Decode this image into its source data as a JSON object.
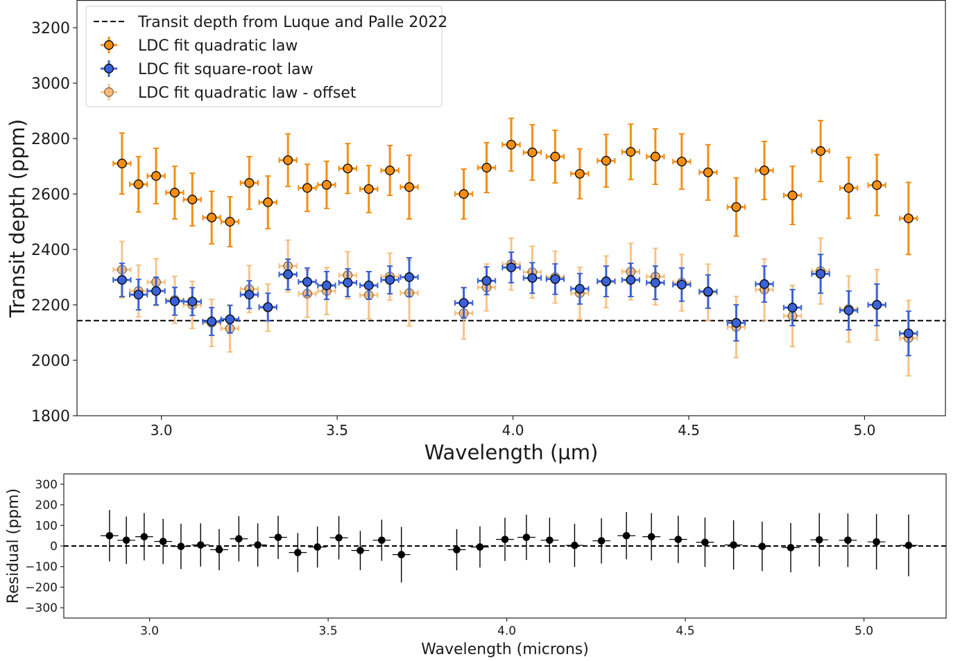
{
  "chart_data": [
    {
      "type": "scatter",
      "xlabel": "Wavelength (µm)",
      "ylabel": "Transit depth (ppm)",
      "xlim": [
        2.76,
        5.23
      ],
      "ylim": [
        1800,
        3300
      ],
      "xticks": [
        3.0,
        3.5,
        4.0,
        4.5,
        5.0
      ],
      "xtick_labels": [
        "3.0",
        "3.5",
        "4.0",
        "4.5",
        "5.0"
      ],
      "yticks": [
        1800,
        2000,
        2200,
        2400,
        2600,
        2800,
        3000,
        3200
      ],
      "ytick_labels": [
        "1800",
        "2000",
        "2200",
        "2400",
        "2600",
        "2800",
        "3000",
        "3200"
      ],
      "legend_position": "top-left",
      "x": [
        2.888,
        2.935,
        2.985,
        3.038,
        3.088,
        3.143,
        3.195,
        3.25,
        3.303,
        3.36,
        3.415,
        3.47,
        3.53,
        3.59,
        3.65,
        3.705,
        3.86,
        3.925,
        3.995,
        4.055,
        4.12,
        4.19,
        4.265,
        4.335,
        4.405,
        4.48,
        4.555,
        4.635,
        4.715,
        4.795,
        4.875,
        4.955,
        5.035,
        5.125
      ],
      "xerr": 0.025,
      "reference_line": {
        "name": "Transit depth from Luque and Palle 2022",
        "y": 2143,
        "style": "dashed",
        "color": "#000000"
      },
      "series": [
        {
          "name": "LDC fit quadratic law",
          "color": "#f28e14",
          "y": [
            2710,
            2635,
            2665,
            2605,
            2580,
            2515,
            2500,
            2640,
            2570,
            2722,
            2622,
            2633,
            2692,
            2618,
            2685,
            2625,
            2600,
            2695,
            2778,
            2750,
            2735,
            2673,
            2720,
            2752,
            2735,
            2717,
            2678,
            2553,
            2685,
            2595,
            2755,
            2622,
            2632,
            2512
          ],
          "yerr": [
            110,
            100,
            100,
            95,
            95,
            95,
            90,
            95,
            95,
            95,
            85,
            85,
            90,
            85,
            90,
            115,
            90,
            90,
            95,
            100,
            95,
            90,
            95,
            100,
            100,
            100,
            100,
            105,
            105,
            105,
            110,
            110,
            110,
            130
          ]
        },
        {
          "name": "LDC fit square-root law",
          "color": "#3a62d6",
          "y": [
            2290,
            2237,
            2250,
            2213,
            2212,
            2140,
            2148,
            2237,
            2192,
            2310,
            2283,
            2270,
            2280,
            2270,
            2290,
            2300,
            2207,
            2287,
            2335,
            2297,
            2293,
            2258,
            2285,
            2290,
            2280,
            2273,
            2248,
            2135,
            2275,
            2190,
            2312,
            2180,
            2200,
            2097
          ],
          "yerr": [
            60,
            55,
            50,
            50,
            50,
            50,
            50,
            50,
            50,
            55,
            50,
            50,
            50,
            50,
            50,
            70,
            55,
            50,
            55,
            55,
            55,
            55,
            55,
            60,
            60,
            60,
            60,
            65,
            65,
            65,
            70,
            70,
            75,
            80
          ]
        },
        {
          "name": "LDC fit quadratic law - offset",
          "color": "#f5b46a",
          "y": [
            2327,
            2250,
            2282,
            2218,
            2200,
            2135,
            2115,
            2257,
            2190,
            2340,
            2240,
            2250,
            2307,
            2235,
            2302,
            2243,
            2170,
            2263,
            2347,
            2318,
            2300,
            2242,
            2283,
            2320,
            2302,
            2280,
            2245,
            2120,
            2255,
            2160,
            2322,
            2185,
            2200,
            2080
          ]
        }
      ]
    },
    {
      "type": "scatter",
      "xlabel": "Wavelength (microns)",
      "ylabel": "Residual (ppm)",
      "xlim": [
        2.76,
        5.23
      ],
      "ylim": [
        -350,
        350
      ],
      "xticks": [
        3.0,
        3.5,
        4.0,
        4.5,
        5.0
      ],
      "xtick_labels": [
        "3.0",
        "3.5",
        "4.0",
        "4.5",
        "5.0"
      ],
      "yticks": [
        -300,
        -200,
        -100,
        0,
        100,
        200,
        300
      ],
      "ytick_labels": [
        "−300",
        "−200",
        "−100",
        "0",
        "100",
        "200",
        "300"
      ],
      "reference_line": {
        "y": 0,
        "style": "dashed",
        "color": "#000000"
      },
      "series": [
        {
          "color": "#000000",
          "x": [
            2.888,
            2.935,
            2.985,
            3.038,
            3.088,
            3.143,
            3.195,
            3.25,
            3.303,
            3.36,
            3.415,
            3.47,
            3.53,
            3.59,
            3.65,
            3.705,
            3.86,
            3.925,
            3.995,
            4.055,
            4.12,
            4.19,
            4.265,
            4.335,
            4.405,
            4.48,
            4.555,
            4.635,
            4.715,
            4.795,
            4.875,
            4.955,
            5.035,
            5.125
          ],
          "xerr": 0.025,
          "y": [
            50,
            28,
            45,
            22,
            -2,
            5,
            -18,
            35,
            5,
            42,
            -32,
            -5,
            40,
            -22,
            28,
            -42,
            -18,
            -5,
            32,
            42,
            28,
            3,
            25,
            50,
            45,
            32,
            18,
            5,
            -2,
            -8,
            30,
            28,
            20,
            3
          ],
          "yerr": [
            125,
            115,
            115,
            110,
            110,
            105,
            100,
            110,
            105,
            105,
            95,
            100,
            105,
            95,
            100,
            135,
            100,
            100,
            105,
            110,
            110,
            105,
            110,
            115,
            115,
            115,
            120,
            120,
            120,
            120,
            130,
            130,
            135,
            150
          ]
        }
      ]
    }
  ]
}
